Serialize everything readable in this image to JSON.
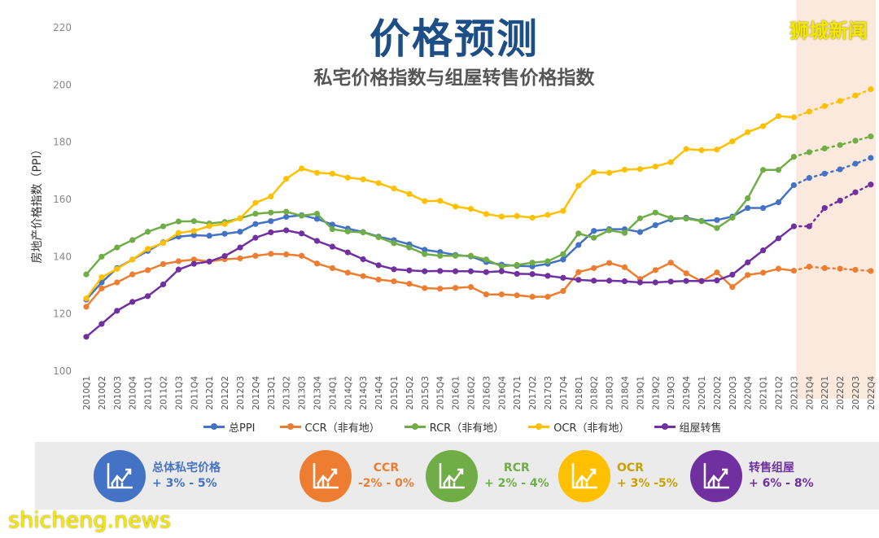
{
  "header": {
    "title": "价格预测",
    "subtitle": "私宅价格指数与组屋转售价格指数"
  },
  "watermarks": {
    "top_right": "狮城新闻",
    "bottom_left": "shicheng.news"
  },
  "chart_data": {
    "type": "line",
    "title": "价格预测",
    "subtitle": "私宅价格指数与组屋转售价格指数",
    "ylabel": "房地产价格指数（PPI）",
    "xlabel": "",
    "ylim": [
      100,
      220
    ],
    "yticks": [
      "100",
      "120",
      "140",
      "160",
      "180",
      "200",
      "220"
    ],
    "grid": false,
    "legend_position": "bottom",
    "forecast_start": "2021Q3",
    "forecast_shading_color": "#fbe9de",
    "categories": [
      "2010Q1",
      "2010Q2",
      "2010Q3",
      "2010Q4",
      "2011Q1",
      "2011Q2",
      "2011Q3",
      "2011Q4",
      "2012Q1",
      "2012Q2",
      "2012Q3",
      "2012Q4",
      "2013Q1",
      "2013Q2",
      "2013Q3",
      "2013Q4",
      "2014Q1",
      "2014Q2",
      "2014Q3",
      "2014Q4",
      "2015Q1",
      "2015Q2",
      "2015Q3",
      "2015Q4",
      "2016Q1",
      "2016Q2",
      "2016Q3",
      "2016Q4",
      "2017Q1",
      "2017Q2",
      "2017Q3",
      "2017Q4",
      "2018Q1",
      "2018Q2",
      "2018Q3",
      "2018Q4",
      "2019Q1",
      "2019Q2",
      "2019Q3",
      "2019Q4",
      "2020Q1",
      "2020Q2",
      "2020Q3",
      "2020Q4",
      "2021Q1",
      "2021Q2",
      "2021Q3",
      "2021Q4",
      "2022Q1",
      "2022Q2",
      "2022Q3",
      "2022Q4"
    ],
    "series": [
      {
        "name": "总PPI",
        "color": "#4472c4",
        "values": [
          125,
          131,
          136,
          139,
          142,
          145,
          147,
          147.5,
          147.3,
          148,
          148.7,
          151.4,
          152.4,
          153.9,
          154.5,
          153.2,
          151.2,
          149.8,
          148.6,
          147,
          145.8,
          144.3,
          142.4,
          141.6,
          140.6,
          140.1,
          138.1,
          137.2,
          136.8,
          136.6,
          137.5,
          139,
          144.1,
          149,
          149.6,
          149.6,
          148.6,
          151,
          153,
          153.6,
          152.5,
          152.8,
          154,
          157,
          157,
          159,
          165,
          167.5,
          169,
          170.5,
          172.5,
          174.5
        ]
      },
      {
        "name": "CCR（非有地）",
        "color": "#ed7d31",
        "values": [
          122.5,
          128.9,
          131,
          133.8,
          135.3,
          137.4,
          138.4,
          139,
          138.3,
          139.1,
          139.4,
          140.3,
          141,
          140.8,
          140.3,
          137.6,
          136,
          134.4,
          133.2,
          132,
          131.4,
          130.5,
          129,
          128.8,
          129.1,
          129.4,
          126.8,
          126.8,
          126.5,
          126,
          126,
          128,
          134.6,
          136,
          137.8,
          136.3,
          132.2,
          135.3,
          137.9,
          134.2,
          131.4,
          134.5,
          129.4,
          133.6,
          134.4,
          135.8,
          135.1,
          136.5,
          136,
          135.8,
          135.4,
          135
        ]
      },
      {
        "name": "RCR（非有地）",
        "color": "#70ad47",
        "values": [
          133.8,
          140,
          143.2,
          145.8,
          148.7,
          150.6,
          152.3,
          152.4,
          151.6,
          152.1,
          153.4,
          155,
          155.4,
          155.7,
          154.3,
          155,
          149.6,
          148.8,
          148.5,
          146.8,
          144.7,
          143.2,
          140.9,
          140.3,
          140.3,
          140.3,
          139,
          136.6,
          137.1,
          137.9,
          138.4,
          140.9,
          148.1,
          146.6,
          149.2,
          148.3,
          153.4,
          155.4,
          153.5,
          153.3,
          152.4,
          150,
          153.6,
          160.4,
          170.3,
          170.3,
          174.9,
          176.5,
          177.8,
          179,
          180.5,
          182
        ]
      },
      {
        "name": "OCR（非有地）",
        "color": "#ffc000",
        "values": [
          125.4,
          132.8,
          135.7,
          139,
          142.7,
          144.8,
          148.3,
          149,
          150.7,
          151.4,
          153.4,
          158.8,
          161,
          167.2,
          170.8,
          169.3,
          169,
          167.6,
          167,
          165.7,
          163.8,
          161.9,
          159.4,
          159.5,
          157.5,
          156.7,
          154.9,
          154,
          154.2,
          153.6,
          154.6,
          156,
          164.8,
          169.5,
          169.3,
          170.4,
          170.6,
          171.5,
          173,
          177.6,
          177.2,
          177.4,
          180.3,
          183.5,
          185.6,
          189.1,
          188.7,
          190.7,
          192.6,
          194.4,
          196.3,
          198.5
        ]
      },
      {
        "name": "组屋转售",
        "color": "#7030a0",
        "values": [
          112,
          116.5,
          121.1,
          124.2,
          126.2,
          130.3,
          135.5,
          137.5,
          138.3,
          140.2,
          143.2,
          146.6,
          148.5,
          149.2,
          148.1,
          145.5,
          143.5,
          141.5,
          139.1,
          137,
          135.6,
          135.2,
          134.9,
          135,
          134.9,
          134.9,
          134.6,
          134.9,
          134,
          133.9,
          133.3,
          132.6,
          131.9,
          131.6,
          131.6,
          131.4,
          131,
          131,
          131.3,
          131.5,
          131.5,
          131.7,
          133.7,
          138,
          142.2,
          146.4,
          150.6,
          150.6,
          157,
          159.6,
          162.5,
          165.2
        ]
      }
    ]
  },
  "forecast_panel": [
    {
      "label": "总体私宅价格",
      "range": "+ 3% - 5%",
      "color": "#4472c4",
      "text_color": "#4472c4",
      "icon": "chart-up-icon"
    },
    {
      "label": "CCR",
      "range": "-2% - 0%",
      "color": "#ed7d31",
      "text_color": "#ed7d31",
      "icon": "chart-up-icon"
    },
    {
      "label": "RCR",
      "range": "+ 2% - 4%",
      "color": "#70ad47",
      "text_color": "#70ad47",
      "icon": "chart-up-icon"
    },
    {
      "label": "OCR",
      "range": "+ 3% -5%",
      "color": "#ffc000",
      "text_color": "#c9a000",
      "icon": "chart-up-icon"
    },
    {
      "label": "转售组屋",
      "range": "+ 6% - 8%",
      "color": "#7030a0",
      "text_color": "#7030a0",
      "icon": "chart-up-icon"
    }
  ]
}
